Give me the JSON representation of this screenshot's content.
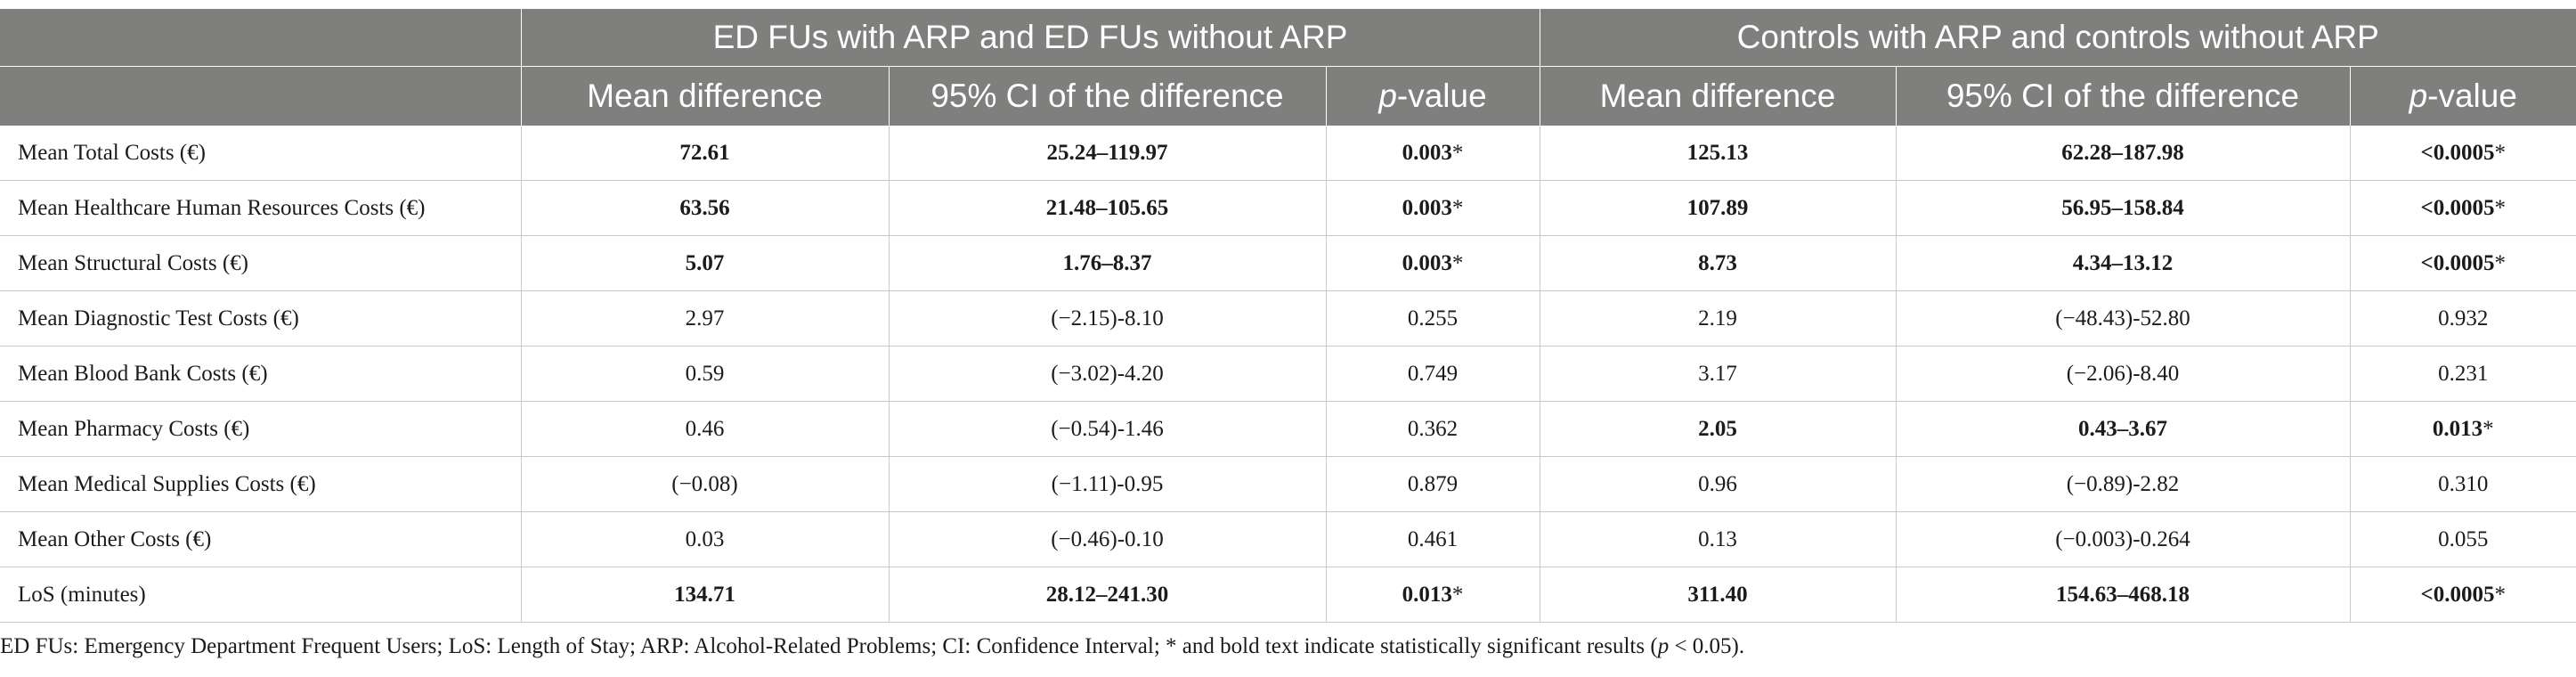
{
  "header": {
    "group1": "ED FUs with ARP and ED FUs without ARP",
    "group2": "Controls with ARP and controls without ARP",
    "mean_difference": "Mean difference",
    "ci": "95% CI of the difference",
    "p_italic": "p",
    "p_rest": "-value"
  },
  "rows": [
    {
      "label": "Mean Total Costs (€)",
      "g1": {
        "md": "72.61",
        "ci": "25.24–119.97",
        "p": "0.003",
        "star": "*",
        "bold": true
      },
      "g2": {
        "md": "125.13",
        "ci": "62.28–187.98",
        "p": "<0.0005",
        "star": "*",
        "bold": true
      }
    },
    {
      "label": "Mean Healthcare Human Resources Costs (€)",
      "g1": {
        "md": "63.56",
        "ci": "21.48–105.65",
        "p": "0.003",
        "star": "*",
        "bold": true
      },
      "g2": {
        "md": "107.89",
        "ci": "56.95–158.84",
        "p": "<0.0005",
        "star": "*",
        "bold": true
      }
    },
    {
      "label": "Mean Structural Costs (€)",
      "g1": {
        "md": "5.07",
        "ci": "1.76–8.37",
        "p": "0.003",
        "star": "*",
        "bold": true
      },
      "g2": {
        "md": "8.73",
        "ci": "4.34–13.12",
        "p": "<0.0005",
        "star": "*",
        "bold": true
      }
    },
    {
      "label": "Mean Diagnostic Test Costs (€)",
      "g1": {
        "md": "2.97",
        "ci": "(−2.15)-8.10",
        "p": "0.255",
        "star": "",
        "bold": false
      },
      "g2": {
        "md": "2.19",
        "ci": "(−48.43)-52.80",
        "p": "0.932",
        "star": "",
        "bold": false
      }
    },
    {
      "label": "Mean Blood Bank Costs (€)",
      "g1": {
        "md": "0.59",
        "ci": "(−3.02)-4.20",
        "p": "0.749",
        "star": "",
        "bold": false
      },
      "g2": {
        "md": "3.17",
        "ci": "(−2.06)-8.40",
        "p": "0.231",
        "star": "",
        "bold": false
      }
    },
    {
      "label": "Mean Pharmacy Costs (€)",
      "g1": {
        "md": "0.46",
        "ci": "(−0.54)-1.46",
        "p": "0.362",
        "star": "",
        "bold": false
      },
      "g2": {
        "md": "2.05",
        "ci": "0.43–3.67",
        "p": "0.013",
        "star": "*",
        "bold": true
      }
    },
    {
      "label": "Mean Medical Supplies Costs (€)",
      "g1": {
        "md": "(−0.08)",
        "ci": "(−1.11)-0.95",
        "p": "0.879",
        "star": "",
        "bold": false
      },
      "g2": {
        "md": "0.96",
        "ci": "(−0.89)-2.82",
        "p": "0.310",
        "star": "",
        "bold": false
      }
    },
    {
      "label": "Mean Other Costs (€)",
      "g1": {
        "md": "0.03",
        "ci": "(−0.46)-0.10",
        "p": "0.461",
        "star": "",
        "bold": false
      },
      "g2": {
        "md": "0.13",
        "ci": "(−0.003)-0.264",
        "p": "0.055",
        "star": "",
        "bold": false
      }
    },
    {
      "label": "LoS (minutes)",
      "g1": {
        "md": "134.71",
        "ci": "28.12–241.30",
        "p": "0.013",
        "star": "*",
        "bold": true
      },
      "g2": {
        "md": "311.40",
        "ci": "154.63–468.18",
        "p": "<0.0005",
        "star": "*",
        "bold": true
      }
    }
  ],
  "footnote": {
    "text": "ED FUs: Emergency Department Frequent Users; LoS: Length of Stay; ARP: Alcohol-Related Problems; CI: Confidence Interval; * and bold text indicate statistically significant results (",
    "p_italic": "p",
    "end": " < 0.05)."
  }
}
